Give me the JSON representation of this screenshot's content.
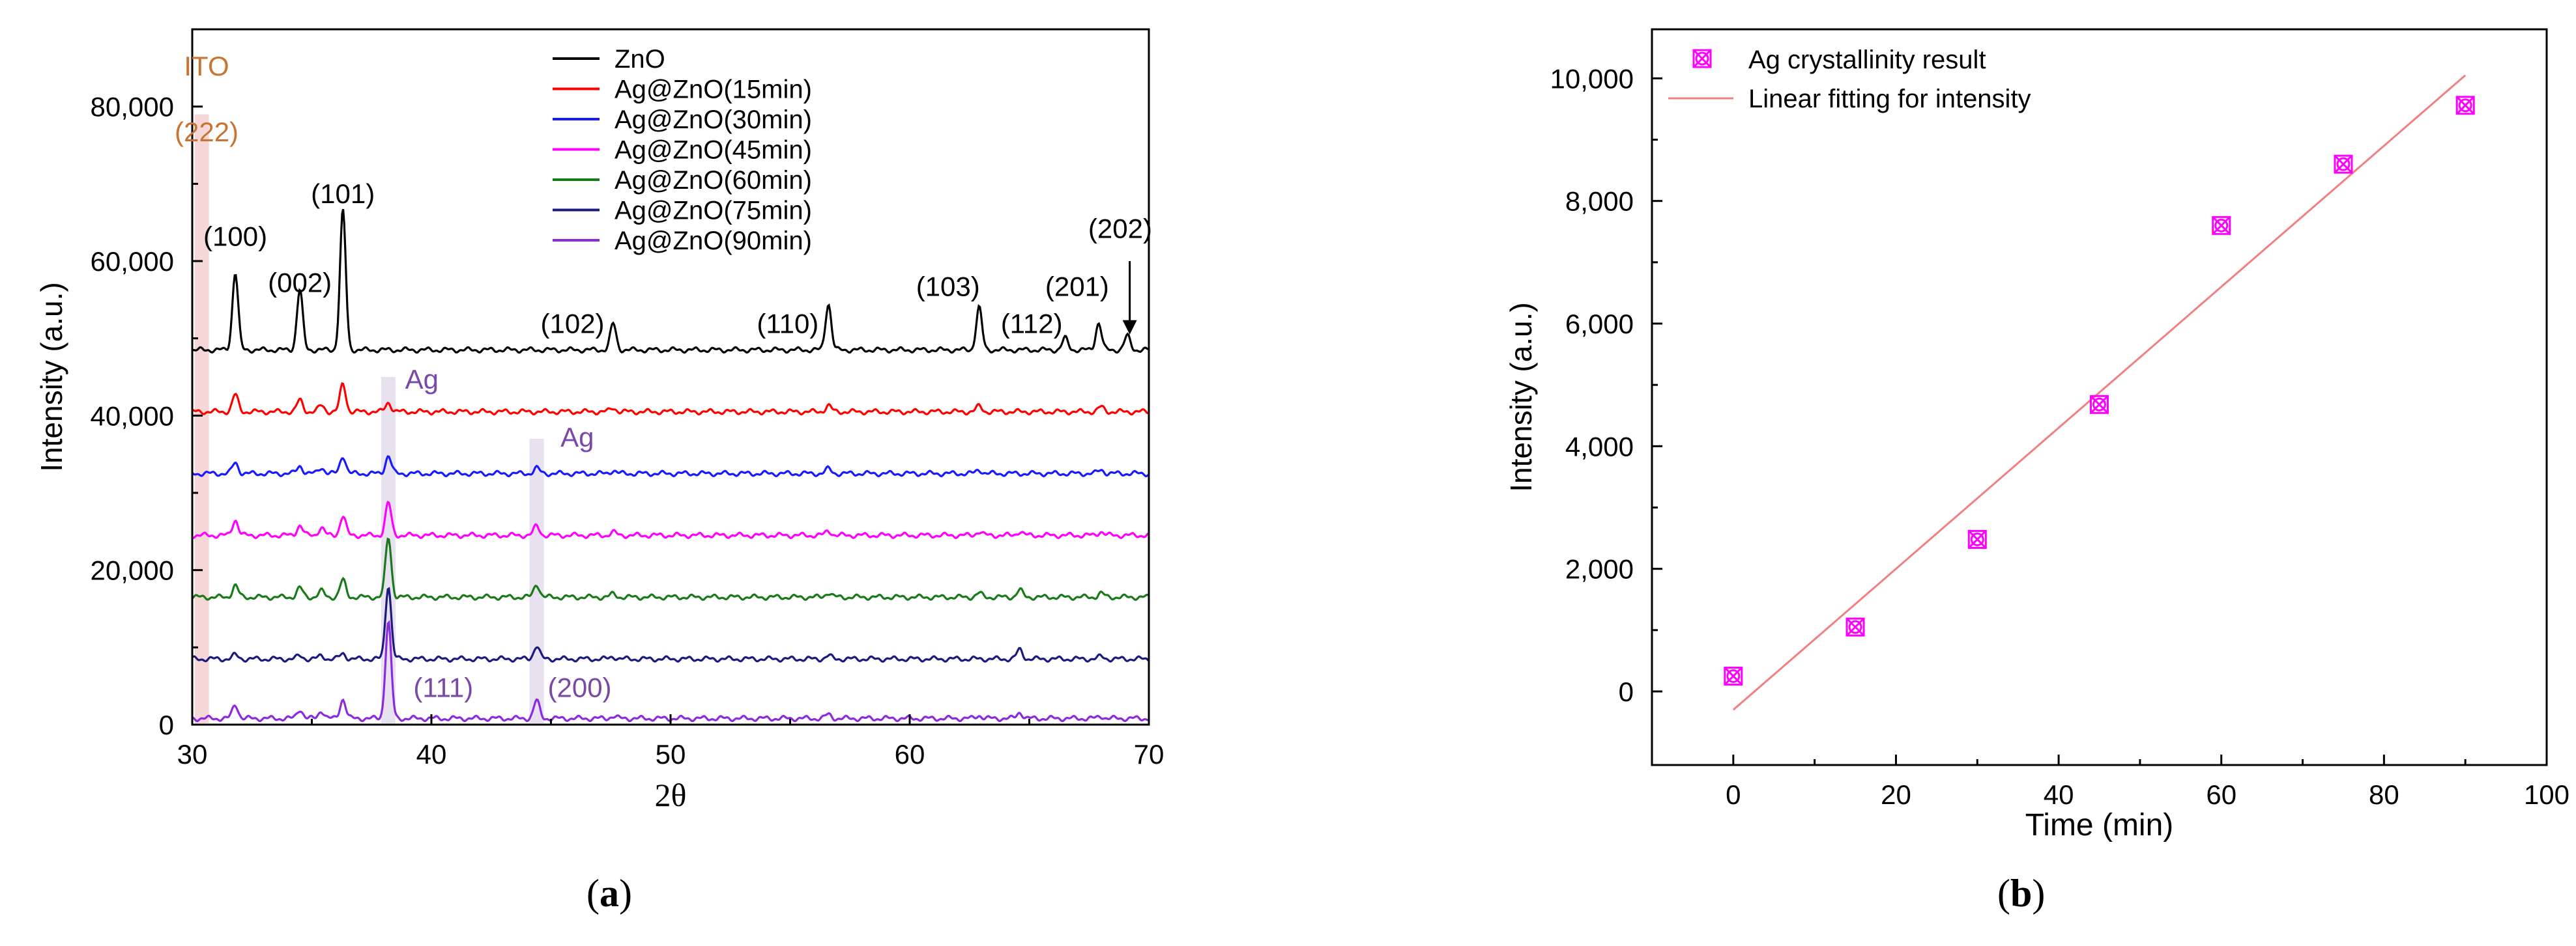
{
  "chart_data": [
    {
      "panel": "a",
      "type": "line",
      "xlabel": "2θ",
      "ylabel": "Intensity (a.u.)",
      "xlim": [
        30,
        70
      ],
      "ylim": [
        0,
        90000
      ],
      "xticks": [
        30,
        40,
        50,
        60,
        70
      ],
      "yticks": [
        0,
        20000,
        40000,
        60000,
        80000
      ],
      "ytick_labels": [
        "0",
        "20,000",
        "40,000",
        "60,000",
        "80,000"
      ],
      "legend_position": "top-right",
      "series": [
        {
          "name": "ZnO",
          "color": "#000000",
          "baseline": 48500,
          "peaks": [
            [
              31.8,
              10000
            ],
            [
              34.5,
              7800
            ],
            [
              36.3,
              18000
            ],
            [
              47.6,
              3400
            ],
            [
              56.6,
              6000
            ],
            [
              62.9,
              5500
            ],
            [
              66.5,
              1500
            ],
            [
              67.9,
              3500
            ],
            [
              69.1,
              1800
            ]
          ]
        },
        {
          "name": "Ag@ZnO(15min)",
          "color": "#ff0000",
          "baseline": 40500,
          "peaks": [
            [
              31.8,
              2200
            ],
            [
              34.5,
              1500
            ],
            [
              35.4,
              800
            ],
            [
              36.3,
              3600
            ],
            [
              38.2,
              1200
            ],
            [
              47.6,
              500
            ],
            [
              56.6,
              800
            ],
            [
              62.9,
              700
            ],
            [
              68.0,
              600
            ]
          ]
        },
        {
          "name": "Ag@ZnO(30min)",
          "color": "#1a1aff",
          "baseline": 32500,
          "peaks": [
            [
              31.8,
              1400
            ],
            [
              34.5,
              1000
            ],
            [
              35.4,
              800
            ],
            [
              36.3,
              2300
            ],
            [
              38.2,
              2300
            ],
            [
              44.4,
              700
            ],
            [
              47.6,
              400
            ],
            [
              56.6,
              600
            ],
            [
              62.9,
              500
            ],
            [
              68.0,
              500
            ]
          ]
        },
        {
          "name": "Ag@ZnO(45min)",
          "color": "#ff00ff",
          "baseline": 24500,
          "peaks": [
            [
              31.8,
              2000
            ],
            [
              34.5,
              1300
            ],
            [
              35.4,
              1000
            ],
            [
              36.3,
              2500
            ],
            [
              38.2,
              4200
            ],
            [
              44.4,
              1200
            ],
            [
              47.6,
              400
            ],
            [
              56.6,
              600
            ],
            [
              62.9,
              500
            ],
            [
              64.6,
              500
            ],
            [
              68.0,
              500
            ]
          ]
        },
        {
          "name": "Ag@ZnO(60min)",
          "color": "#1a7a1a",
          "baseline": 16500,
          "peaks": [
            [
              31.8,
              1500
            ],
            [
              34.5,
              1200
            ],
            [
              35.4,
              800
            ],
            [
              36.3,
              2200
            ],
            [
              38.2,
              7700
            ],
            [
              44.4,
              1700
            ],
            [
              47.6,
              400
            ],
            [
              56.6,
              600
            ],
            [
              62.9,
              500
            ],
            [
              64.6,
              900
            ],
            [
              68.0,
              500
            ]
          ]
        },
        {
          "name": "Ag@ZnO(75min)",
          "color": "#1a1a80",
          "baseline": 8500,
          "peaks": [
            [
              31.8,
              500
            ],
            [
              34.5,
              400
            ],
            [
              35.4,
              400
            ],
            [
              36.3,
              700
            ],
            [
              38.2,
              9500
            ],
            [
              44.4,
              1700
            ],
            [
              47.6,
              300
            ],
            [
              56.6,
              400
            ],
            [
              64.6,
              1200
            ],
            [
              68.0,
              300
            ]
          ]
        },
        {
          "name": "Ag@ZnO(90min)",
          "color": "#8a2be2",
          "baseline": 800,
          "peaks": [
            [
              31.8,
              1800
            ],
            [
              34.5,
              1200
            ],
            [
              35.4,
              1000
            ],
            [
              36.3,
              2500
            ],
            [
              38.2,
              12500
            ],
            [
              44.4,
              2300
            ],
            [
              47.6,
              300
            ],
            [
              56.6,
              500
            ],
            [
              62.9,
              400
            ],
            [
              64.6,
              800
            ],
            [
              68.0,
              300
            ]
          ]
        }
      ],
      "annotations": [
        {
          "text": "ITO",
          "x": 30.6,
          "y": 84000,
          "color": "#c87533"
        },
        {
          "text": "(222)",
          "x": 30.6,
          "y": 75500,
          "color": "#c87533"
        },
        {
          "text": "(100)",
          "x": 31.8,
          "y": 62000,
          "color": "#000000"
        },
        {
          "text": "(002)",
          "x": 34.5,
          "y": 56000,
          "color": "#000000"
        },
        {
          "text": "(101)",
          "x": 36.3,
          "y": 67500,
          "color": "#000000"
        },
        {
          "text": "(102)",
          "x": 45.9,
          "y": 50700,
          "color": "#000000"
        },
        {
          "text": "(110)",
          "x": 54.9,
          "y": 50700,
          "color": "#000000"
        },
        {
          "text": "(103)",
          "x": 61.6,
          "y": 55500,
          "color": "#000000"
        },
        {
          "text": "(112)",
          "x": 65.1,
          "y": 50700,
          "color": "#000000"
        },
        {
          "text": "(201)",
          "x": 67.0,
          "y": 55500,
          "color": "#000000"
        },
        {
          "text": "(202)",
          "x": 68.8,
          "y": 63000,
          "color": "#000000"
        },
        {
          "text": "Ag",
          "x": 39.6,
          "y": 43500,
          "color": "#7a48a8"
        },
        {
          "text": "Ag",
          "x": 46.1,
          "y": 36000,
          "color": "#7a48a8"
        },
        {
          "text": "(111)",
          "x": 40.5,
          "y": 3600,
          "color": "#7a48a8"
        },
        {
          "text": "(200)",
          "x": 46.2,
          "y": 3600,
          "color": "#7a48a8"
        }
      ],
      "highlight_bands": [
        {
          "x": [
            30.1,
            30.7
          ],
          "color": "#f6d7d7",
          "ytop": 79000
        },
        {
          "x": [
            37.9,
            38.5
          ],
          "color": "#e8e2f0",
          "ytop": 45000
        },
        {
          "x": [
            44.1,
            44.7
          ],
          "color": "#e8e2f0",
          "ytop": 37000
        }
      ],
      "arrow": {
        "x": 69.2,
        "y_from": 60000,
        "y_to": 50500
      }
    },
    {
      "panel": "b",
      "type": "scatter",
      "xlabel": "Time (min)",
      "ylabel": "Intensity (a.u.)",
      "xlim": [
        -10,
        100
      ],
      "ylim": [
        -1200,
        10800
      ],
      "xticks": [
        0,
        20,
        40,
        60,
        80,
        100
      ],
      "yticks": [
        0,
        2000,
        4000,
        6000,
        8000,
        10000
      ],
      "ytick_labels": [
        "0",
        "2,000",
        "4,000",
        "6,000",
        "8,000",
        "10,000"
      ],
      "legend_position": "top-left",
      "series": [
        {
          "name": "Ag crystallinity result",
          "color": "#ff00ff",
          "x": [
            0,
            15,
            30,
            45,
            60,
            75,
            90
          ],
          "y": [
            250,
            1050,
            2480,
            4680,
            7600,
            8600,
            9560
          ]
        },
        {
          "name": "Linear fitting for intensity",
          "color": "#f08080",
          "x": [
            0,
            90
          ],
          "y": [
            -300,
            10050
          ]
        }
      ]
    }
  ],
  "captions": {
    "a": "a",
    "b": "b"
  }
}
